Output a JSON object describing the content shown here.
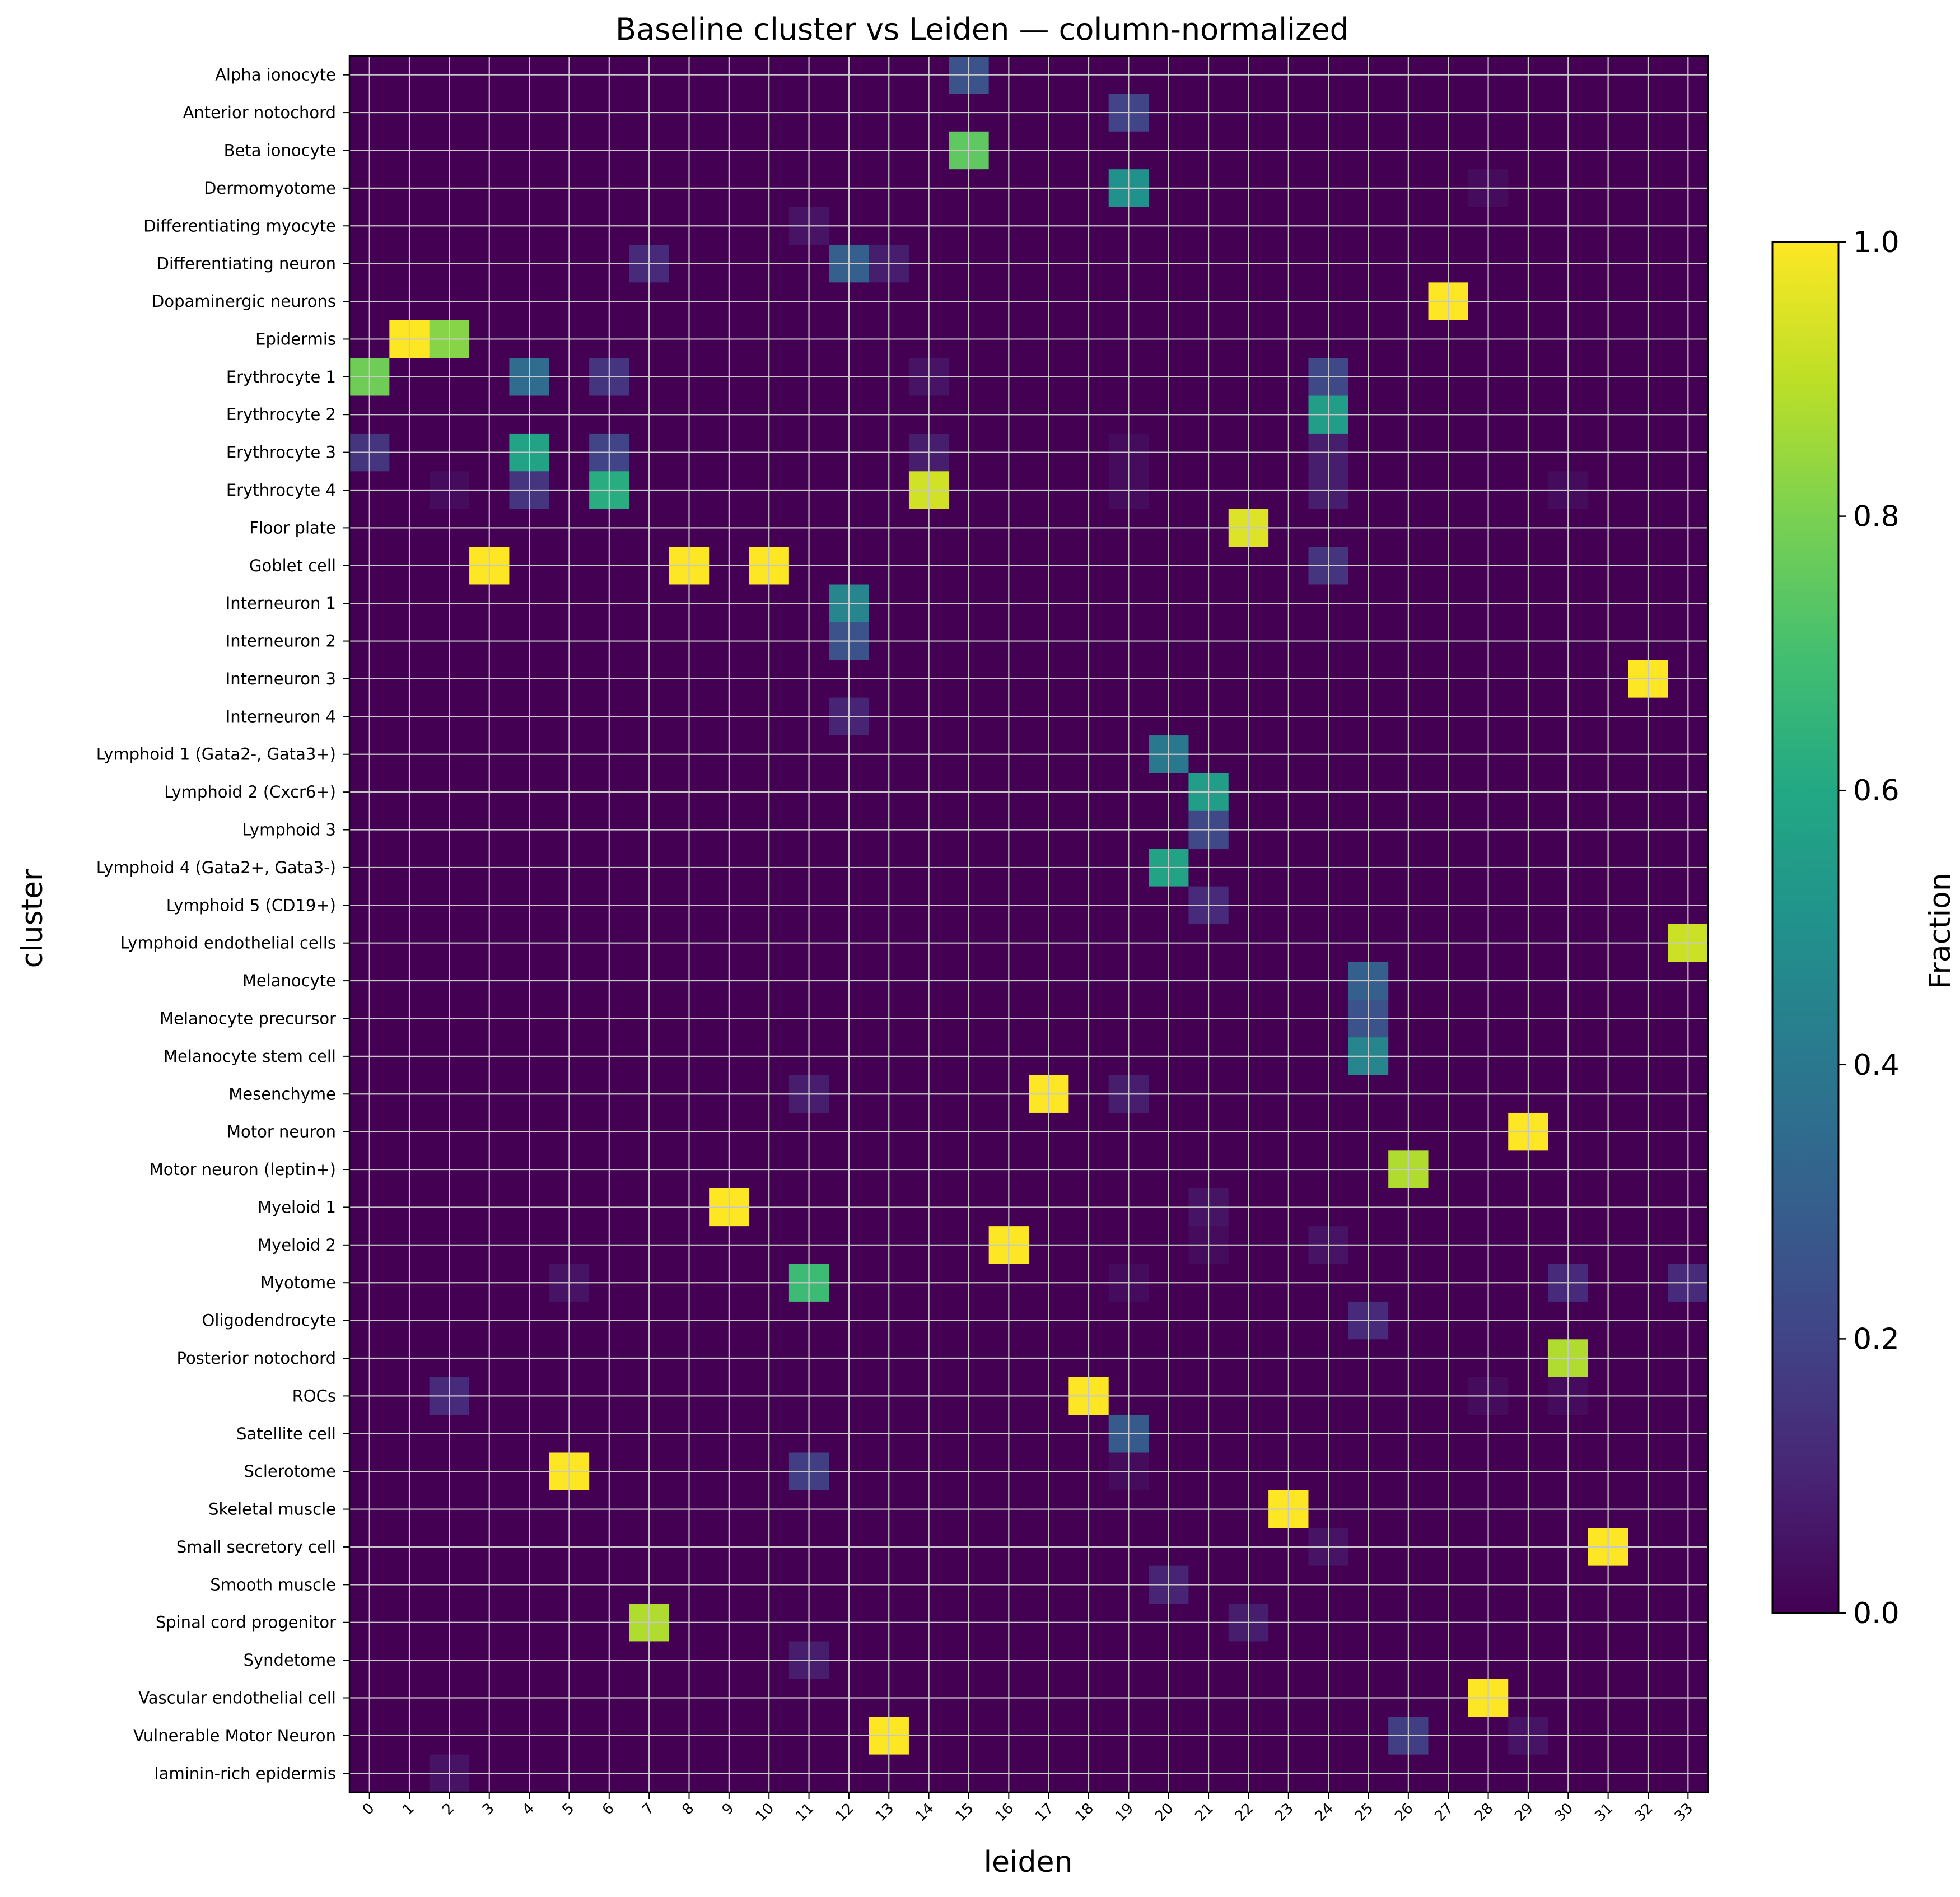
{
  "chart_data": {
    "type": "heatmap",
    "title": "Baseline cluster vs Leiden — column-normalized",
    "xlabel": "leiden",
    "ylabel": "cluster",
    "colorbar": {
      "label": "Fraction",
      "range": [
        0.0,
        1.0
      ],
      "ticks": [
        "0.0",
        "0.2",
        "0.4",
        "0.6",
        "0.8",
        "1.0"
      ],
      "colormap": "viridis"
    },
    "grid": true,
    "x": [
      "0",
      "1",
      "2",
      "3",
      "4",
      "5",
      "6",
      "7",
      "8",
      "9",
      "10",
      "11",
      "12",
      "13",
      "14",
      "15",
      "16",
      "17",
      "18",
      "19",
      "20",
      "21",
      "22",
      "23",
      "24",
      "25",
      "26",
      "27",
      "28",
      "29",
      "30",
      "31",
      "32",
      "33"
    ],
    "y": [
      "Alpha ionocyte",
      "Anterior notochord",
      "Beta ionocyte",
      "Dermomyotome",
      "Differentiating myocyte",
      "Differentiating neuron",
      "Dopaminergic neurons",
      "Epidermis",
      "Erythrocyte 1",
      "Erythrocyte 2",
      "Erythrocyte 3",
      "Erythrocyte 4",
      "Floor plate",
      "Goblet cell",
      "Interneuron 1",
      "Interneuron 2",
      "Interneuron 3",
      "Interneuron 4",
      "Lymphoid 1 (Gata2-, Gata3+)",
      "Lymphoid 2 (Cxcr6+)",
      "Lymphoid 3",
      "Lymphoid 4 (Gata2+, Gata3-)",
      "Lymphoid 5 (CD19+)",
      "Lymphoid endothelial cells",
      "Melanocyte",
      "Melanocyte precursor",
      "Melanocyte stem cell",
      "Mesenchyme",
      "Motor neuron",
      "Motor neuron (leptin+)",
      "Myeloid 1",
      "Myeloid 2",
      "Myotome",
      "Oligodendrocyte",
      "Posterior notochord",
      "ROCs",
      "Satellite cell",
      "Sclerotome",
      "Skeletal muscle",
      "Small secretory cell",
      "Smooth muscle",
      "Spinal cord progenitor",
      "Syndetome",
      "Vascular endothelial cell",
      "Vulnerable Motor Neuron",
      "laminin-rich epidermis"
    ],
    "nonzero_cells": [
      {
        "row": "Alpha ionocyte",
        "col": "15",
        "value": 0.25
      },
      {
        "row": "Anterior notochord",
        "col": "19",
        "value": 0.2
      },
      {
        "row": "Beta ionocyte",
        "col": "15",
        "value": 0.75
      },
      {
        "row": "Dermomyotome",
        "col": "19",
        "value": 0.5
      },
      {
        "row": "Dermomyotome",
        "col": "28",
        "value": 0.03
      },
      {
        "row": "Differentiating myocyte",
        "col": "11",
        "value": 0.05
      },
      {
        "row": "Differentiating neuron",
        "col": "7",
        "value": 0.12
      },
      {
        "row": "Differentiating neuron",
        "col": "12",
        "value": 0.3
      },
      {
        "row": "Differentiating neuron",
        "col": "13",
        "value": 0.08
      },
      {
        "row": "Dopaminergic neurons",
        "col": "27",
        "value": 1.0
      },
      {
        "row": "Epidermis",
        "col": "1",
        "value": 1.0
      },
      {
        "row": "Epidermis",
        "col": "2",
        "value": 0.82
      },
      {
        "row": "Erythrocyte 1",
        "col": "0",
        "value": 0.78
      },
      {
        "row": "Erythrocyte 1",
        "col": "4",
        "value": 0.35
      },
      {
        "row": "Erythrocyte 1",
        "col": "6",
        "value": 0.15
      },
      {
        "row": "Erythrocyte 1",
        "col": "14",
        "value": 0.05
      },
      {
        "row": "Erythrocyte 1",
        "col": "24",
        "value": 0.22
      },
      {
        "row": "Erythrocyte 2",
        "col": "24",
        "value": 0.55
      },
      {
        "row": "Erythrocyte 3",
        "col": "0",
        "value": 0.15
      },
      {
        "row": "Erythrocyte 3",
        "col": "4",
        "value": 0.58
      },
      {
        "row": "Erythrocyte 3",
        "col": "6",
        "value": 0.2
      },
      {
        "row": "Erythrocyte 3",
        "col": "14",
        "value": 0.08
      },
      {
        "row": "Erythrocyte 3",
        "col": "19",
        "value": 0.03
      },
      {
        "row": "Erythrocyte 3",
        "col": "24",
        "value": 0.08
      },
      {
        "row": "Erythrocyte 4",
        "col": "2",
        "value": 0.03
      },
      {
        "row": "Erythrocyte 4",
        "col": "4",
        "value": 0.15
      },
      {
        "row": "Erythrocyte 4",
        "col": "6",
        "value": 0.62
      },
      {
        "row": "Erythrocyte 4",
        "col": "14",
        "value": 0.93
      },
      {
        "row": "Erythrocyte 4",
        "col": "19",
        "value": 0.03
      },
      {
        "row": "Erythrocyte 4",
        "col": "24",
        "value": 0.08
      },
      {
        "row": "Erythrocyte 4",
        "col": "30",
        "value": 0.03
      },
      {
        "row": "Floor plate",
        "col": "22",
        "value": 0.95
      },
      {
        "row": "Goblet cell",
        "col": "3",
        "value": 1.0
      },
      {
        "row": "Goblet cell",
        "col": "8",
        "value": 1.0
      },
      {
        "row": "Goblet cell",
        "col": "10",
        "value": 1.0
      },
      {
        "row": "Goblet cell",
        "col": "24",
        "value": 0.15
      },
      {
        "row": "Interneuron 1",
        "col": "12",
        "value": 0.45
      },
      {
        "row": "Interneuron 2",
        "col": "12",
        "value": 0.25
      },
      {
        "row": "Interneuron 3",
        "col": "32",
        "value": 1.0
      },
      {
        "row": "Interneuron 4",
        "col": "12",
        "value": 0.1
      },
      {
        "row": "Lymphoid 1 (Gata2-, Gata3+)",
        "col": "20",
        "value": 0.4
      },
      {
        "row": "Lymphoid 2 (Cxcr6+)",
        "col": "21",
        "value": 0.55
      },
      {
        "row": "Lymphoid 3",
        "col": "21",
        "value": 0.22
      },
      {
        "row": "Lymphoid 4 (Gata2+, Gata3-)",
        "col": "20",
        "value": 0.58
      },
      {
        "row": "Lymphoid 5 (CD19+)",
        "col": "21",
        "value": 0.12
      },
      {
        "row": "Lymphoid endothelial cells",
        "col": "33",
        "value": 0.92
      },
      {
        "row": "Melanocyte",
        "col": "25",
        "value": 0.3
      },
      {
        "row": "Melanocyte precursor",
        "col": "25",
        "value": 0.25
      },
      {
        "row": "Melanocyte stem cell",
        "col": "25",
        "value": 0.45
      },
      {
        "row": "Mesenchyme",
        "col": "11",
        "value": 0.08
      },
      {
        "row": "Mesenchyme",
        "col": "17",
        "value": 1.0
      },
      {
        "row": "Mesenchyme",
        "col": "19",
        "value": 0.08
      },
      {
        "row": "Motor neuron",
        "col": "29",
        "value": 1.0
      },
      {
        "row": "Motor neuron (leptin+)",
        "col": "26",
        "value": 0.88
      },
      {
        "row": "Myeloid 1",
        "col": "9",
        "value": 1.0
      },
      {
        "row": "Myeloid 1",
        "col": "21",
        "value": 0.05
      },
      {
        "row": "Myeloid 2",
        "col": "16",
        "value": 1.0
      },
      {
        "row": "Myeloid 2",
        "col": "21",
        "value": 0.03
      },
      {
        "row": "Myeloid 2",
        "col": "24",
        "value": 0.05
      },
      {
        "row": "Myotome",
        "col": "5",
        "value": 0.05
      },
      {
        "row": "Myotome",
        "col": "11",
        "value": 0.68
      },
      {
        "row": "Myotome",
        "col": "19",
        "value": 0.03
      },
      {
        "row": "Myotome",
        "col": "30",
        "value": 0.12
      },
      {
        "row": "Myotome",
        "col": "33",
        "value": 0.12
      },
      {
        "row": "Oligodendrocyte",
        "col": "25",
        "value": 0.12
      },
      {
        "row": "Posterior notochord",
        "col": "30",
        "value": 0.88
      },
      {
        "row": "ROCs",
        "col": "2",
        "value": 0.12
      },
      {
        "row": "ROCs",
        "col": "18",
        "value": 1.0
      },
      {
        "row": "ROCs",
        "col": "28",
        "value": 0.03
      },
      {
        "row": "ROCs",
        "col": "30",
        "value": 0.03
      },
      {
        "row": "Satellite cell",
        "col": "19",
        "value": 0.28
      },
      {
        "row": "Sclerotome",
        "col": "5",
        "value": 1.0
      },
      {
        "row": "Sclerotome",
        "col": "11",
        "value": 0.18
      },
      {
        "row": "Sclerotome",
        "col": "19",
        "value": 0.03
      },
      {
        "row": "Skeletal muscle",
        "col": "23",
        "value": 1.0
      },
      {
        "row": "Small secretory cell",
        "col": "24",
        "value": 0.05
      },
      {
        "row": "Small secretory cell",
        "col": "31",
        "value": 1.0
      },
      {
        "row": "Smooth muscle",
        "col": "20",
        "value": 0.1
      },
      {
        "row": "Spinal cord progenitor",
        "col": "7",
        "value": 0.88
      },
      {
        "row": "Spinal cord progenitor",
        "col": "22",
        "value": 0.08
      },
      {
        "row": "Syndetome",
        "col": "11",
        "value": 0.08
      },
      {
        "row": "Vascular endothelial cell",
        "col": "28",
        "value": 1.0
      },
      {
        "row": "Vulnerable Motor Neuron",
        "col": "13",
        "value": 1.0
      },
      {
        "row": "Vulnerable Motor Neuron",
        "col": "26",
        "value": 0.18
      },
      {
        "row": "Vulnerable Motor Neuron",
        "col": "29",
        "value": 0.05
      },
      {
        "row": "laminin-rich epidermis",
        "col": "2",
        "value": 0.05
      }
    ]
  }
}
